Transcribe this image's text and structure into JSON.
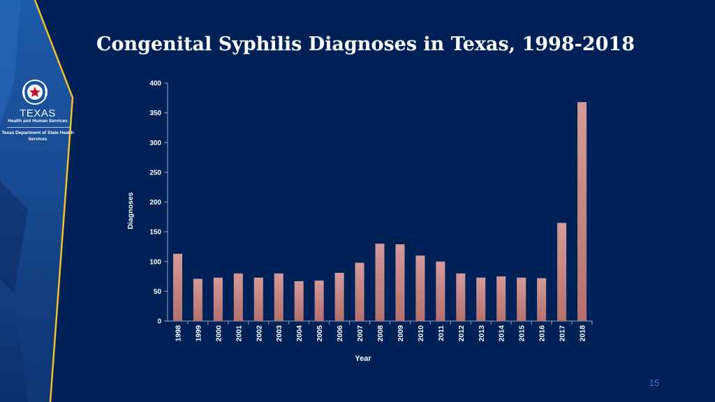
{
  "slide": {
    "title": "Congenital Syphilis Diagnoses in Texas, 1998-2018",
    "page_number": "15",
    "logo": {
      "name": "TEXAS",
      "subtitle": "Health and Human Services",
      "department": "Texas Department of State Health Services"
    },
    "colors": {
      "background": "#002157",
      "accent_stripe": "#f2c12e",
      "bar_top": "#d39b9a",
      "bar_bottom": "#b4706e"
    }
  },
  "chart_data": {
    "type": "bar",
    "categories": [
      "1998",
      "1999",
      "2000",
      "2001",
      "2002",
      "2003",
      "2004",
      "2005",
      "2006",
      "2007",
      "2008",
      "2009",
      "2010",
      "2011",
      "2012",
      "2013",
      "2014",
      "2015",
      "2016",
      "2017",
      "2018"
    ],
    "values": [
      113,
      71,
      73,
      80,
      73,
      80,
      67,
      68,
      81,
      98,
      130,
      129,
      110,
      100,
      80,
      73,
      75,
      73,
      72,
      165,
      368
    ],
    "xlabel": "Year",
    "ylabel": "Diagnoses",
    "ylim": [
      0,
      400
    ],
    "yticks": [
      "0",
      "50",
      "100",
      "150",
      "200",
      "250",
      "300",
      "350",
      "400"
    ],
    "grid": false,
    "legend": "none"
  }
}
